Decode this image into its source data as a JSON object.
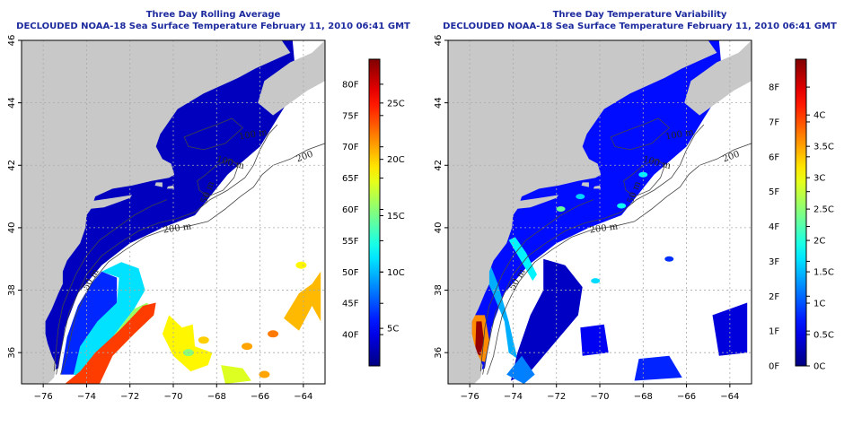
{
  "panels": [
    {
      "id": "rolling-average",
      "title": "Three Day Rolling Average",
      "subtitle": "DECLOUDED NOAA-18 Sea Surface Temperature February 11, 2010 06:41 GMT",
      "colorbar": {
        "left_labels": [
          "80F",
          "75F",
          "70F",
          "65F",
          "60F",
          "55F",
          "50F",
          "45F",
          "40F"
        ],
        "left_values": [
          80,
          75,
          70,
          65,
          60,
          55,
          50,
          45,
          40
        ],
        "right_labels": [
          "25C",
          "20C",
          "15C",
          "10C",
          "5C"
        ],
        "right_values": [
          77,
          68,
          59,
          50,
          41
        ],
        "range_f": [
          35,
          84
        ]
      }
    },
    {
      "id": "temperature-variability",
      "title": "Three Day Temperature Variability",
      "subtitle": "DECLOUDED NOAA-18 Sea Surface Temperature February 11, 2010 06:41 GMT",
      "colorbar": {
        "left_labels": [
          "8F",
          "7F",
          "6F",
          "5F",
          "4F",
          "3F",
          "2F",
          "1F",
          "0F"
        ],
        "left_values": [
          8,
          7,
          6,
          5,
          4,
          3,
          2,
          1,
          0
        ],
        "right_labels": [
          "4C",
          "3.5C",
          "3C",
          "2.5C",
          "2C",
          "1.5C",
          "1C",
          "0.5C",
          "0C"
        ],
        "right_values": [
          7.2,
          6.3,
          5.4,
          4.5,
          3.6,
          2.7,
          1.8,
          0.9,
          0
        ],
        "range_f": [
          0,
          8.8
        ]
      }
    }
  ],
  "axes": {
    "x_ticks": [
      -76,
      -74,
      -72,
      -70,
      -68,
      -66,
      -64
    ],
    "x_labels": [
      "−76",
      "−74",
      "−72",
      "−70",
      "−68",
      "−66",
      "−64"
    ],
    "y_ticks": [
      36,
      38,
      40,
      42,
      44,
      46
    ],
    "y_labels": [
      "36",
      "38",
      "40",
      "42",
      "44",
      "46"
    ],
    "lon_range": [
      -77,
      -63
    ],
    "lat_range": [
      35,
      46
    ]
  },
  "contour_labels": [
    {
      "text": "100 m",
      "lon": -66.3,
      "lat": 42.9,
      "rotate": -10
    },
    {
      "text": "200",
      "lon": -63.9,
      "lat": 42.2,
      "rotate": -20
    },
    {
      "text": "100 m",
      "lon": -67.4,
      "lat": 42.0,
      "rotate": 15
    },
    {
      "text": "50 m",
      "lon": -68.3,
      "lat": 41.1,
      "rotate": -70
    },
    {
      "text": "200 m",
      "lon": -69.8,
      "lat": 39.9,
      "rotate": -8
    },
    {
      "text": "50 m",
      "lon": -73.7,
      "lat": 38.3,
      "rotate": -60
    }
  ],
  "colors": {
    "land": "#c8c8c8",
    "nodata": "#ffffff",
    "contour": "#444444",
    "title": "#1c2a9e",
    "jet": [
      "#00007f",
      "#0000ff",
      "#007fff",
      "#00ffff",
      "#7fff7f",
      "#ffff00",
      "#ff7f00",
      "#ff0000",
      "#7f0000"
    ]
  }
}
